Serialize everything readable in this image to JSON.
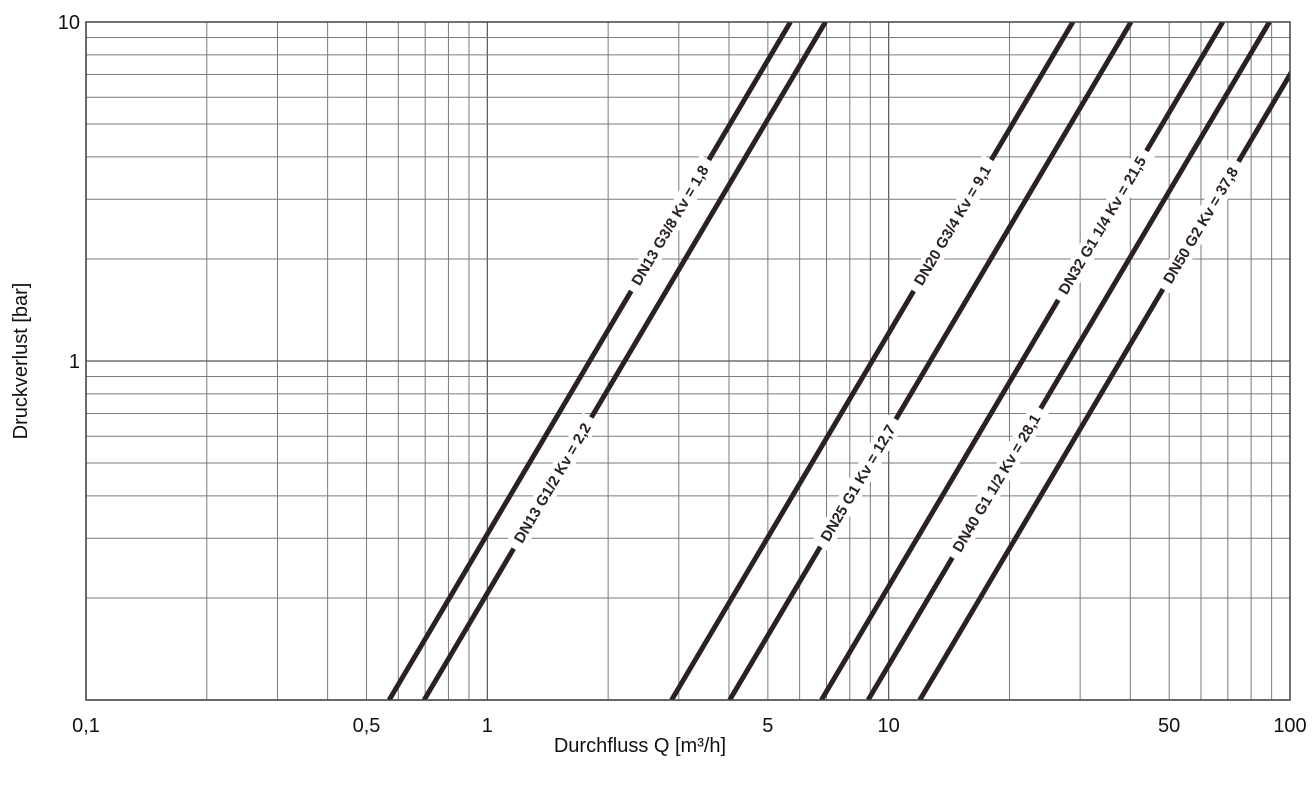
{
  "chart_data": {
    "type": "line",
    "title": "",
    "xlabel": "Durchfluss Q [m³/h]",
    "ylabel": "Druckverlust [bar]",
    "x_scale": "log",
    "y_scale": "log",
    "xlim": [
      0.1,
      100
    ],
    "ylim": [
      0.1,
      10
    ],
    "grid": true,
    "x_ticks": [
      {
        "value": 0.1,
        "label": "0,1"
      },
      {
        "value": 0.5,
        "label": "0,5"
      },
      {
        "value": 1,
        "label": "1"
      },
      {
        "value": 5,
        "label": "5"
      },
      {
        "value": 10,
        "label": "10"
      },
      {
        "value": 50,
        "label": "50"
      },
      {
        "value": 100,
        "label": "100"
      }
    ],
    "y_ticks": [
      {
        "value": 1,
        "label": "1"
      },
      {
        "value": 10,
        "label": "10"
      }
    ],
    "series": [
      {
        "name": "DN13 G3/8  Kv = 1,8",
        "kv": 1.8,
        "x": [
          0.57,
          1.8
        ],
        "y": [
          0.1,
          1
        ]
      },
      {
        "name": "DN13 G1/2  Kv = 2,2",
        "kv": 2.2,
        "x": [
          0.7,
          2.2
        ],
        "y": [
          0.1,
          1
        ]
      },
      {
        "name": "DN20 G3/4  Kv = 9,1",
        "kv": 9.1,
        "x": [
          2.88,
          9.1
        ],
        "y": [
          0.1,
          1
        ]
      },
      {
        "name": "DN25 G1  Kv = 12,7",
        "kv": 12.7,
        "x": [
          4.02,
          12.7
        ],
        "y": [
          0.1,
          1
        ]
      },
      {
        "name": "DN32 G1 1/4  Kv = 21,5",
        "kv": 21.5,
        "x": [
          6.8,
          21.5
        ],
        "y": [
          0.1,
          1
        ]
      },
      {
        "name": "DN40 G1 1/2  Kv = 28,1",
        "kv": 28.1,
        "x": [
          8.89,
          28.1
        ],
        "y": [
          0.1,
          1
        ]
      },
      {
        "name": "DN50 G2  Kv = 37,8",
        "kv": 37.8,
        "x": [
          11.95,
          37.8
        ],
        "y": [
          0.1,
          1
        ]
      }
    ],
    "legend": "none"
  }
}
